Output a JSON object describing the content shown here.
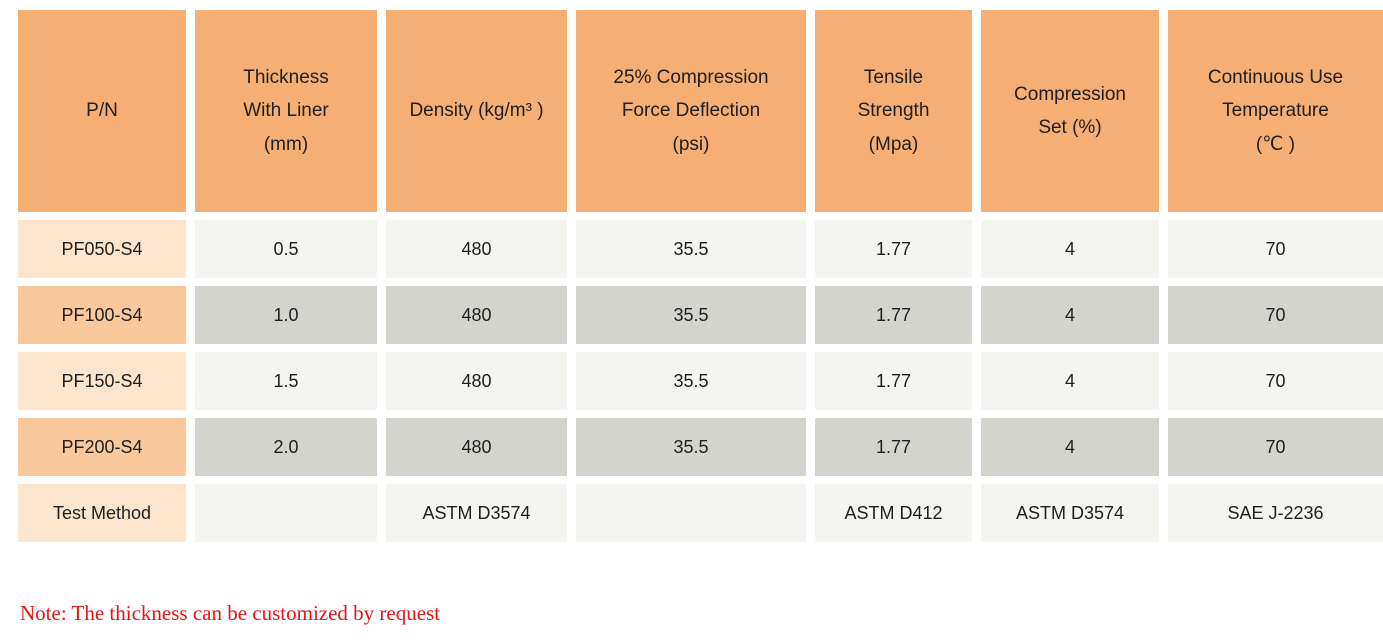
{
  "table": {
    "headers": [
      {
        "key": "pn",
        "label": "P/N"
      },
      {
        "key": "thickness",
        "label": "Thickness\nWith Liner\n(mm)"
      },
      {
        "key": "density",
        "label": "Density (kg/m³ )"
      },
      {
        "key": "cfd",
        "label": "25% Compression\nForce Deflection\n(psi)"
      },
      {
        "key": "tensile",
        "label": "Tensile\nStrength\n(Mpa)"
      },
      {
        "key": "compression_set",
        "label": "Compression\nSet (%)"
      },
      {
        "key": "temperature",
        "label": "Continuous Use\nTemperature\n(℃ )"
      }
    ],
    "rows": [
      {
        "pn": "PF050-S4",
        "cells": [
          "0.5",
          "480",
          "35.5",
          "1.77",
          "4",
          "70"
        ]
      },
      {
        "pn": "PF100-S4",
        "cells": [
          "1.0",
          "480",
          "35.5",
          "1.77",
          "4",
          "70"
        ]
      },
      {
        "pn": "PF150-S4",
        "cells": [
          "1.5",
          "480",
          "35.5",
          "1.77",
          "4",
          "70"
        ]
      },
      {
        "pn": "PF200-S4",
        "cells": [
          "2.0",
          "480",
          "35.5",
          "1.77",
          "4",
          "70"
        ]
      },
      {
        "pn": "Test Method",
        "cells": [
          "",
          "ASTM D3574",
          "",
          "ASTM D412",
          "ASTM D3574",
          "SAE J-2236"
        ]
      }
    ]
  },
  "note": "Note: The thickness can be customized by request",
  "colors": {
    "header_bg": "#F5AE73",
    "pn_row_light": "#FCE5CC",
    "pn_row_dark": "#F9C99D",
    "value_row_light": "#F4F4F0",
    "value_row_dark": "#D3D4CD",
    "note_text": "#E41414",
    "cell_text": "#1F1F1F"
  }
}
